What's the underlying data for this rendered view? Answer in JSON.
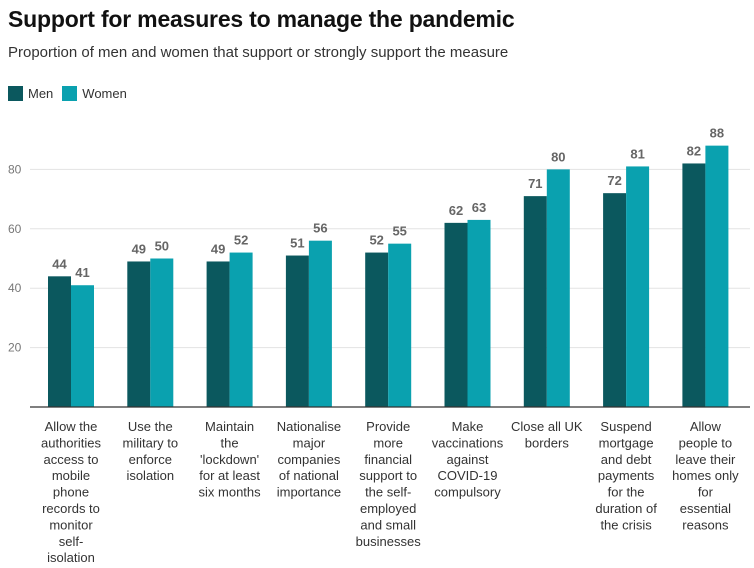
{
  "chart_data": {
    "type": "bar",
    "title": "Support for measures to manage the pandemic",
    "subtitle": "Proportion of men and women that support or strongly support the measure",
    "categories": [
      [
        "Allow the",
        "authorities",
        "access to",
        "mobile",
        "phone",
        "records to",
        "monitor",
        "self-",
        "isolation"
      ],
      [
        "Use the",
        "military to",
        "enforce",
        "isolation"
      ],
      [
        "Maintain",
        "the",
        "'lockdown'",
        "for at least",
        "six months"
      ],
      [
        "Nationalise",
        "major",
        "companies",
        "of national",
        "importance"
      ],
      [
        "Provide",
        "more",
        "financial",
        "support to",
        "the self-",
        "employed",
        "and small",
        "businesses"
      ],
      [
        "Make",
        "vaccinations",
        "against",
        "COVID-19",
        "compulsory"
      ],
      [
        "Close all UK",
        "borders"
      ],
      [
        "Suspend",
        "mortgage",
        "and debt",
        "payments",
        "for the",
        "duration of",
        "the crisis"
      ],
      [
        "Allow",
        "people to",
        "leave their",
        "homes only",
        "for",
        "essential",
        "reasons"
      ]
    ],
    "series": [
      {
        "name": "Men",
        "color": "#0b585e",
        "values": [
          44,
          49,
          49,
          51,
          52,
          62,
          71,
          72,
          82
        ]
      },
      {
        "name": "Women",
        "color": "#0aa1af",
        "values": [
          41,
          50,
          52,
          56,
          55,
          63,
          80,
          81,
          88
        ]
      }
    ],
    "yticks": [
      20,
      40,
      60,
      80
    ],
    "ylim": [
      0,
      88
    ],
    "grid": true,
    "legend": "top-left"
  }
}
